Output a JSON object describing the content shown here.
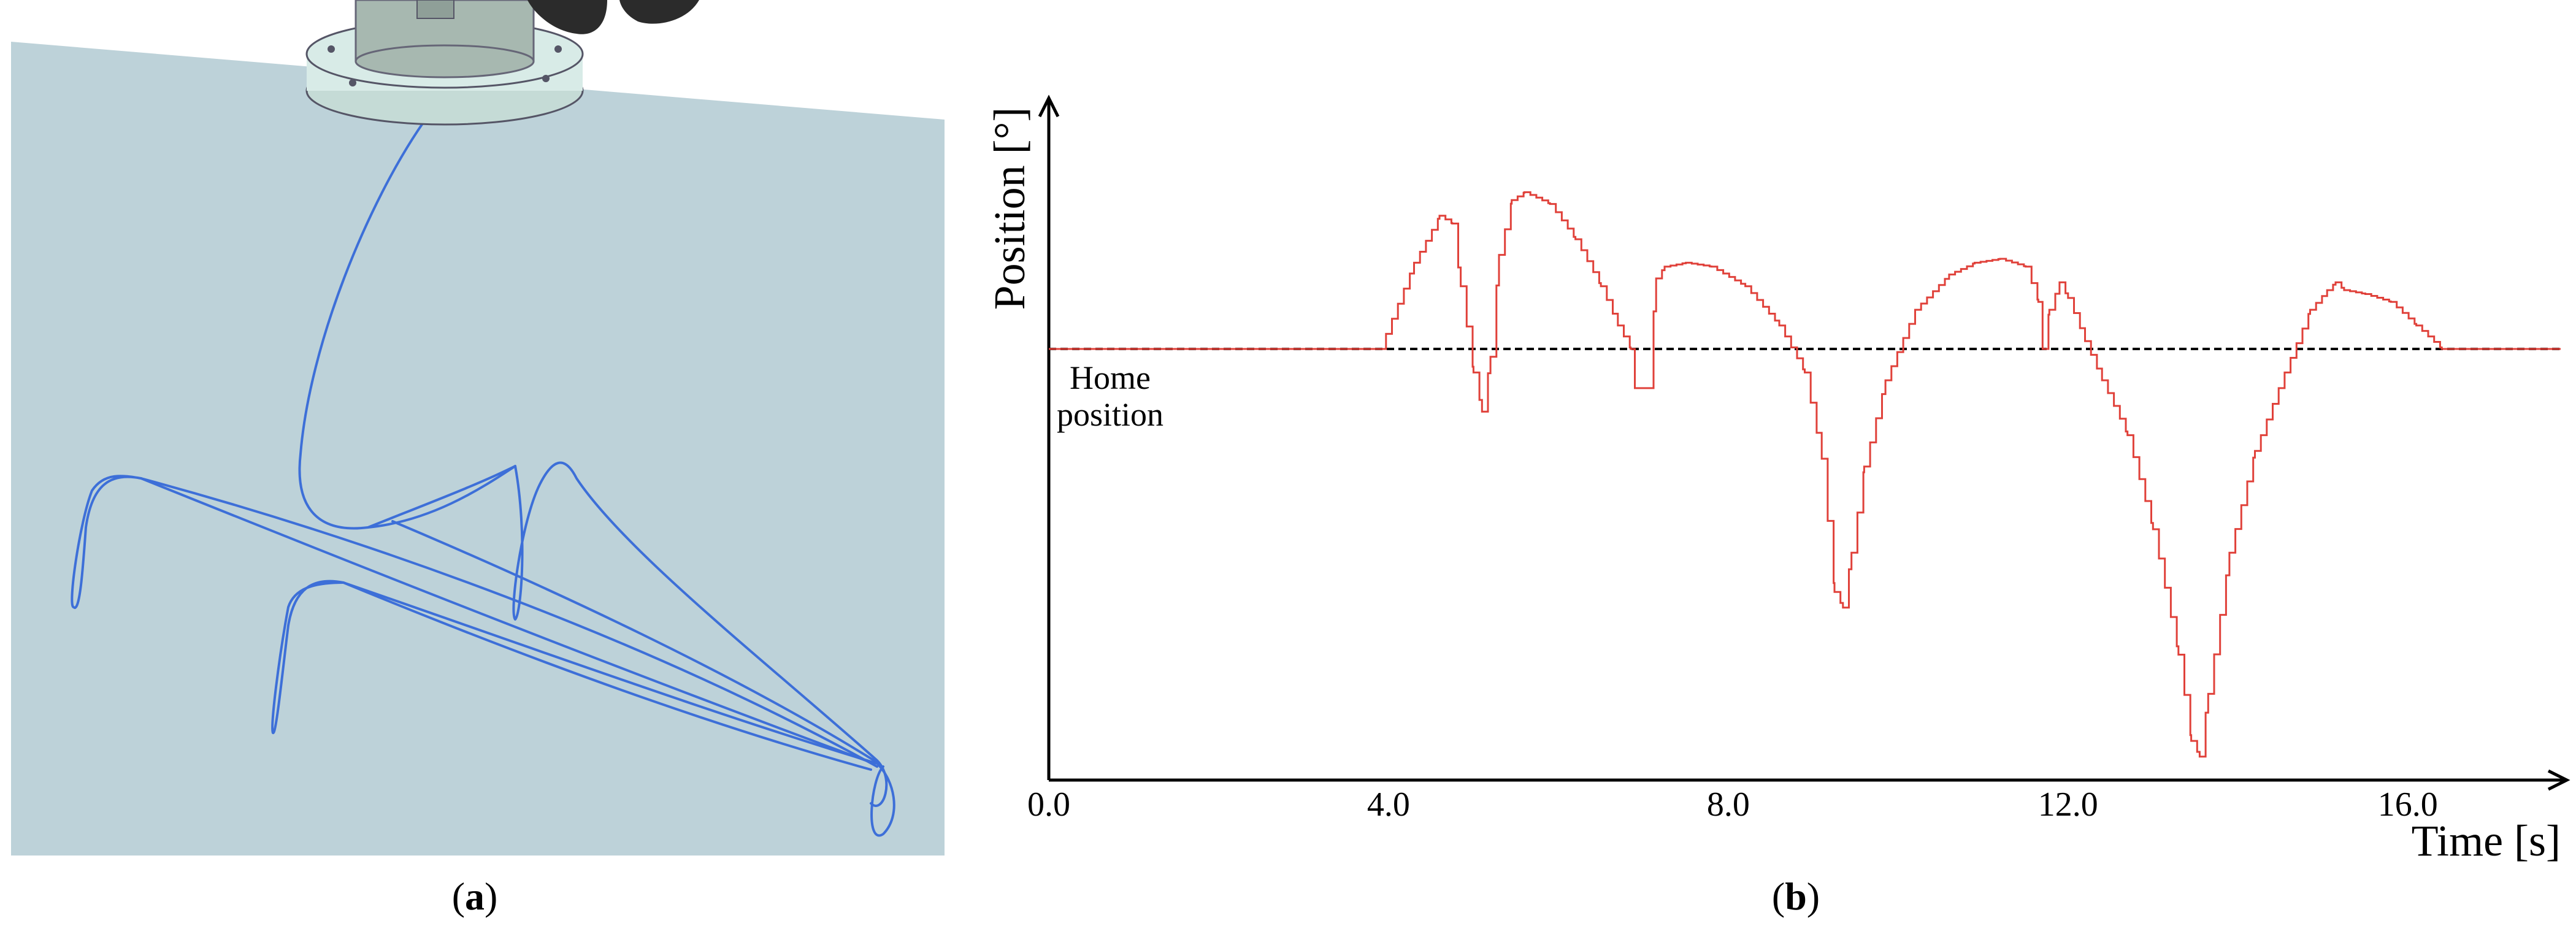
{
  "captions": {
    "a_letter": "a",
    "b_letter": "b"
  },
  "colors": {
    "plane": "#bdd2d9",
    "trajectory": "#3d6fd8",
    "series": "#e0413a",
    "reference": "#000000",
    "tool_body": "#a7b8b0",
    "tool_flange": "#d8ebe7"
  },
  "chart_data": {
    "type": "line",
    "ylabel": "Position [°]",
    "xlabel": "Time [s]",
    "xlim": [
      0,
      17.8
    ],
    "ylim": [
      -5.5,
      3.2
    ],
    "x_ticks": [
      "0.0",
      "4.0",
      "8.0",
      "12.0",
      "16.0"
    ],
    "x_tick_values": [
      0,
      4,
      8,
      12,
      16
    ],
    "grid": false,
    "reference_line": {
      "y": 0,
      "style": "dashed",
      "label_line1": "Home",
      "label_line2": "position"
    },
    "series": [
      {
        "style": "step",
        "x": [
          0,
          3.9,
          4.3,
          4.6,
          4.75,
          4.85,
          5.0,
          5.1,
          5.2,
          5.3,
          5.45,
          5.6,
          5.9,
          6.2,
          6.5,
          6.7,
          6.85,
          6.9,
          7.05,
          7.15,
          7.25,
          7.5,
          7.8,
          8.2,
          8.6,
          8.9,
          9.1,
          9.25,
          9.35,
          9.45,
          9.6,
          9.85,
          10.2,
          10.6,
          10.9,
          11.2,
          11.5,
          11.65,
          11.7,
          11.78,
          11.9,
          12.0,
          12.2,
          12.4,
          12.7,
          13.0,
          13.3,
          13.45,
          13.55,
          13.65,
          13.9,
          14.2,
          14.55,
          14.85,
          15.05,
          15.15,
          15.25,
          15.5,
          15.8,
          16.1,
          16.4,
          17.8
        ],
        "y": [
          0,
          0,
          1.1,
          1.7,
          1.6,
          0.8,
          -0.3,
          -0.8,
          -0.1,
          1.2,
          1.9,
          2.0,
          1.85,
          1.4,
          0.8,
          0.3,
          0,
          -0.5,
          -0.5,
          0.9,
          1.05,
          1.1,
          1.05,
          0.8,
          0.3,
          -0.3,
          -1.4,
          -3.1,
          -3.3,
          -2.6,
          -1.5,
          -0.4,
          0.5,
          0.95,
          1.1,
          1.15,
          1.05,
          0.6,
          0,
          0.5,
          0.85,
          0.65,
          0.1,
          -0.4,
          -1.1,
          -2.3,
          -3.9,
          -5.0,
          -5.2,
          -4.4,
          -2.6,
          -1.3,
          -0.3,
          0.5,
          0.75,
          0.85,
          0.75,
          0.7,
          0.6,
          0.3,
          0,
          0
        ]
      }
    ]
  }
}
